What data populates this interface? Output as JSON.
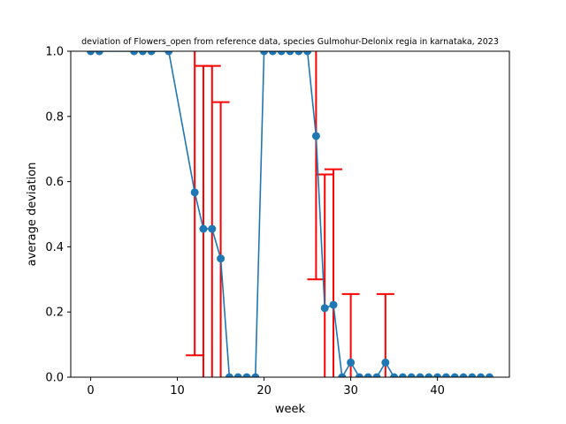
{
  "chart_data": {
    "type": "line",
    "title": "deviation of Flowers_open from reference data, species Gulmohur-Delonix regia in karnataka, 2023",
    "xlabel": "week",
    "ylabel": "average deviation",
    "xlim": [
      -2.3,
      48.3
    ],
    "ylim": [
      0,
      1.0
    ],
    "xticks": [
      0,
      10,
      20,
      30,
      40
    ],
    "yticks": [
      0.0,
      0.2,
      0.4,
      0.6,
      0.8,
      1.0
    ],
    "xtick_labels": [
      "0",
      "10",
      "20",
      "30",
      "40"
    ],
    "ytick_labels": [
      "0.0",
      "0.2",
      "0.4",
      "0.6",
      "0.8",
      "1.0"
    ],
    "grid": false,
    "colors": {
      "line": "#1f77b4",
      "errorbar": "#ff0000"
    },
    "series": [
      {
        "x": [
          0,
          1,
          5,
          6,
          7,
          9,
          12,
          13,
          14,
          15,
          16,
          17,
          18,
          19,
          20,
          21,
          22,
          23,
          24,
          25,
          26,
          27,
          28,
          29,
          30,
          31,
          32,
          33,
          34,
          35,
          36,
          37,
          38,
          39,
          40,
          41,
          42,
          43,
          44,
          45,
          46
        ],
        "y": [
          1.0,
          1.0,
          1.0,
          1.0,
          1.0,
          1.0,
          0.567,
          0.455,
          0.455,
          0.364,
          0.0,
          0.0,
          0.0,
          0.0,
          1.0,
          1.0,
          1.0,
          1.0,
          1.0,
          1.0,
          0.74,
          0.212,
          0.222,
          0.0,
          0.045,
          0.0,
          0.0,
          0.0,
          0.045,
          0.0,
          0.0,
          0.0,
          0.0,
          0.0,
          0.0,
          0.0,
          0.0,
          0.0,
          0.0,
          0.0,
          0.0
        ],
        "err": [
          0,
          0,
          0,
          0,
          0,
          0,
          0.5,
          0.5,
          0.5,
          0.48,
          0,
          0,
          0,
          0,
          0,
          0,
          0,
          0,
          0,
          0,
          0.44,
          0.41,
          0.416,
          0,
          0.21,
          0,
          0,
          0,
          0.21,
          0,
          0,
          0,
          0,
          0,
          0,
          0,
          0,
          0,
          0,
          0,
          0
        ]
      }
    ]
  }
}
